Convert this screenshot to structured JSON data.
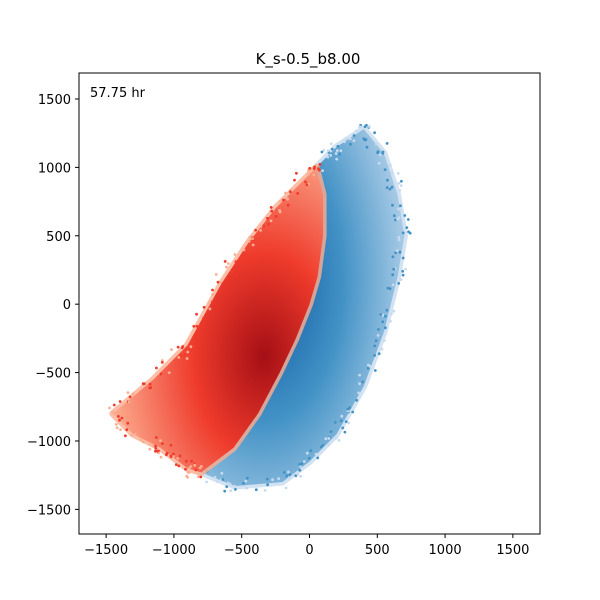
{
  "chart_data": {
    "type": "scatter",
    "title": "K_s-0.5_b8.00",
    "annotation": "57.75 hr",
    "xlabel": "",
    "ylabel": "",
    "xlim": [
      -1700,
      1700
    ],
    "ylim": [
      -1680,
      1690
    ],
    "xticks": [
      -1500,
      -1000,
      -500,
      0,
      500,
      1000,
      1500
    ],
    "yticks": [
      -1500,
      -1000,
      -500,
      0,
      500,
      1000,
      1500
    ],
    "xtick_labels": [
      "−1500",
      "−1000",
      "−500",
      "0",
      "500",
      "1000",
      "1500"
    ],
    "ytick_labels": [
      "−1500",
      "−1000",
      "−500",
      "0",
      "500",
      "1000",
      "1500"
    ],
    "grid": false,
    "legend": "none",
    "series": [
      {
        "colormap": "Reds",
        "color_dense": "#a50f15",
        "color_mid": "#ef3b2c",
        "color_sparse": "#fcae91",
        "outer_boundary": [
          [
            50,
            1000
          ],
          [
            -50,
            900
          ],
          [
            -250,
            700
          ],
          [
            -450,
            450
          ],
          [
            -650,
            150
          ],
          [
            -900,
            -300
          ],
          [
            -1150,
            -550
          ],
          [
            -1450,
            -800
          ],
          [
            -1300,
            -950
          ],
          [
            -1100,
            -1050
          ],
          [
            -900,
            -1200
          ],
          [
            -800,
            -1230
          ]
        ],
        "inner_boundary": [
          [
            50,
            1000
          ],
          [
            100,
            800
          ],
          [
            100,
            500
          ],
          [
            60,
            200
          ],
          [
            0,
            0
          ],
          [
            -100,
            -250
          ],
          [
            -220,
            -500
          ],
          [
            -380,
            -800
          ],
          [
            -560,
            -1050
          ],
          [
            -800,
            -1230
          ]
        ]
      },
      {
        "colormap": "Blues",
        "color_dense": "#08519c",
        "color_mid": "#4292c6",
        "color_sparse": "#c6dbef",
        "outer_boundary": [
          [
            50,
            1000
          ],
          [
            200,
            1150
          ],
          [
            400,
            1280
          ],
          [
            550,
            1100
          ],
          [
            650,
            800
          ],
          [
            700,
            500
          ],
          [
            650,
            200
          ],
          [
            550,
            -200
          ],
          [
            400,
            -600
          ],
          [
            200,
            -950
          ],
          [
            0,
            -1150
          ],
          [
            -200,
            -1300
          ],
          [
            -550,
            -1330
          ],
          [
            -800,
            -1230
          ]
        ],
        "inner_boundary": [
          [
            50,
            1000
          ],
          [
            100,
            800
          ],
          [
            100,
            500
          ],
          [
            60,
            200
          ],
          [
            0,
            0
          ],
          [
            -100,
            -250
          ],
          [
            -220,
            -500
          ],
          [
            -380,
            -800
          ],
          [
            -560,
            -1050
          ],
          [
            -800,
            -1230
          ]
        ]
      }
    ]
  }
}
